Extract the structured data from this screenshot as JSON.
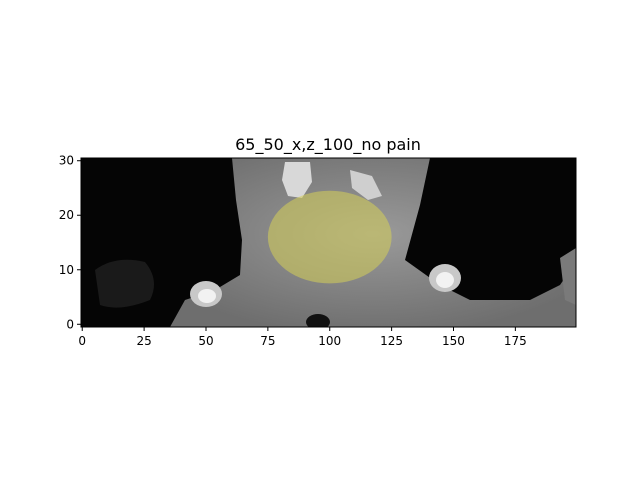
{
  "figure": {
    "title": "65_50_x,z_100_no pain",
    "background": "#ffffff"
  },
  "chart_data": {
    "type": "heatmap",
    "title": "65_50_x,z_100_no pain",
    "xlabel": "",
    "ylabel": "",
    "xlim": [
      0,
      199
    ],
    "ylim": [
      0,
      30
    ],
    "origin": "lower",
    "colormap": "gray",
    "grid": false,
    "x_ticks": [
      0,
      25,
      50,
      75,
      100,
      125,
      150,
      175
    ],
    "y_ticks": [
      0,
      10,
      20,
      30
    ],
    "overlay": {
      "shape": "ellipse",
      "center": [
        100,
        16
      ],
      "radius_x": 25,
      "radius_y": 8.5,
      "color": "#d6cf58",
      "opacity": 0.55
    }
  }
}
